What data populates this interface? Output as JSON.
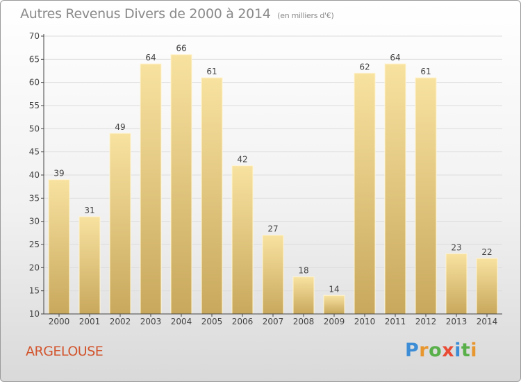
{
  "header": {
    "title": "Autres Revenus Divers de 2000 à 2014",
    "unit": "(en milliers d'€)"
  },
  "footer": {
    "place": "ARGELOUSE",
    "logo_letters": [
      {
        "ch": "P",
        "color": "#3c8dd6"
      },
      {
        "ch": "r",
        "color": "#e8962e"
      },
      {
        "ch": "o",
        "color": "#59b04a"
      },
      {
        "ch": "x",
        "color": "#e94b35"
      },
      {
        "ch": "i",
        "color": "#3c8dd6"
      },
      {
        "ch": "t",
        "color": "#59b04a"
      },
      {
        "ch": "i",
        "color": "#e8962e"
      }
    ]
  },
  "colors": {
    "bar_top": "#f8e2a0",
    "bar_bottom": "#c8a85c",
    "grid": "#dcdcdc",
    "axis": "#444444",
    "label": "#444444"
  },
  "chart_data": {
    "type": "bar",
    "title": "Autres Revenus Divers de 2000 à 2014",
    "subtitle": "(en milliers d'€)",
    "xlabel": "",
    "ylabel": "",
    "categories": [
      "2000",
      "2001",
      "2002",
      "2003",
      "2004",
      "2005",
      "2006",
      "2007",
      "2008",
      "2009",
      "2010",
      "2011",
      "2012",
      "2013",
      "2014"
    ],
    "values": [
      39,
      31,
      49,
      64,
      66,
      61,
      42,
      27,
      18,
      14,
      62,
      64,
      61,
      23,
      22
    ],
    "ylim": [
      10,
      70
    ],
    "yticks": [
      10,
      15,
      20,
      25,
      30,
      35,
      40,
      45,
      50,
      55,
      60,
      65,
      70
    ],
    "grid": true,
    "legend": "none"
  }
}
